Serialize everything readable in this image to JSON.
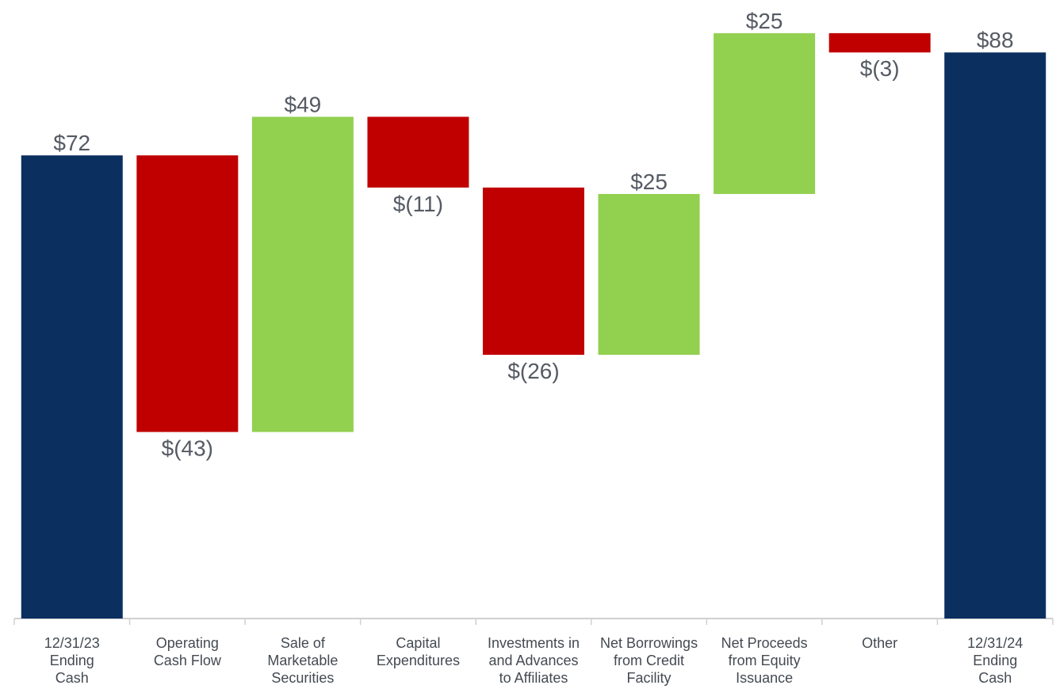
{
  "chart_data": {
    "type": "waterfall",
    "categories": [
      "12/31/23\nEnding\nCash",
      "Operating\nCash Flow",
      "Sale of\nMarketable\nSecurities",
      "Capital\nExpenditures",
      "Investments in\nand Advances\nto Affiliates",
      "Net Borrowings\nfrom Credit\nFacility",
      "Net Proceeds\nfrom Equity\nIssuance",
      "Other",
      "12/31/24\nEnding\nCash"
    ],
    "values": [
      72,
      -43,
      49,
      -11,
      -26,
      25,
      25,
      -3,
      88
    ],
    "value_labels": [
      "$72",
      "$(43)",
      "$49",
      "$(11)",
      "$(26)",
      "$25",
      "$25",
      "$(3)",
      "$88"
    ],
    "ylim": [
      0,
      90
    ],
    "color_total": "#0b2f5f",
    "color_increase": "#92d050",
    "color_decrease": "#c00000"
  }
}
